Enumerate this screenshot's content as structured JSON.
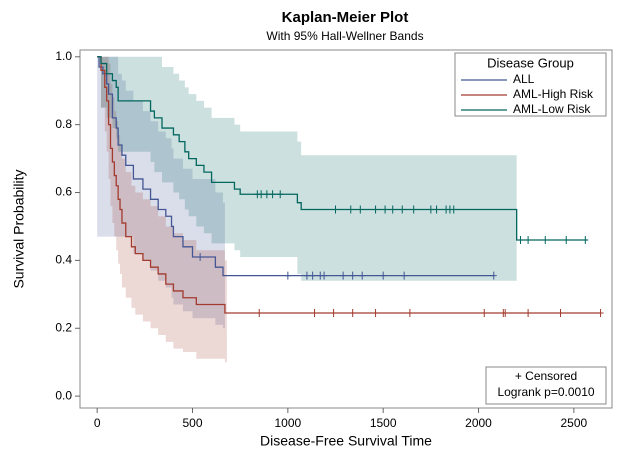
{
  "chart_data": {
    "type": "survival",
    "title": "Kaplan-Meier Plot",
    "subtitle": "With 95% Hall-Wellner Bands",
    "x_label": "Disease-Free Survival Time",
    "y_label": "Survival Probability",
    "xlim": [
      -90,
      2700
    ],
    "ylim": [
      -0.035,
      1.02
    ],
    "xticks": [
      0,
      500,
      1000,
      1500,
      2000,
      2500
    ],
    "yticks": [
      {
        "value": 0,
        "label": "0.0"
      },
      {
        "value": 0.2,
        "label": "0.2"
      },
      {
        "value": 0.4,
        "label": "0.4"
      },
      {
        "value": 0.6,
        "label": "0.6"
      },
      {
        "value": 0.8,
        "label": "0.8"
      },
      {
        "value": 1,
        "label": "1.0"
      }
    ],
    "legend_title": "Disease Group",
    "legend_position": "top-right",
    "censored_legend": "+ Censored",
    "logrank": "Logrank p=0.0010",
    "series": [
      {
        "name": "ALL",
        "color": "#445694",
        "x": [
          0,
          10,
          30,
          50,
          60,
          80,
          100,
          110,
          130,
          150,
          190,
          240,
          280,
          320,
          360,
          390,
          400,
          450,
          500,
          620,
          660,
          670,
          2080
        ],
        "y": [
          1,
          0.97,
          0.95,
          0.92,
          0.89,
          0.82,
          0.79,
          0.74,
          0.71,
          0.68,
          0.64,
          0.61,
          0.58,
          0.55,
          0.53,
          0.5,
          0.47,
          0.44,
          0.41,
          0.38,
          0.355,
          0.355,
          0.355
        ],
        "lower": [
          0.47,
          0.47,
          0.47,
          0.47,
          0.47,
          0.47,
          0.47,
          0.47,
          0.47,
          0.47,
          0.42,
          0.4,
          0.37,
          0.34,
          0.32,
          0.29,
          0.27,
          0.25,
          0.23,
          0.21,
          0.2,
          null,
          null
        ],
        "upper": [
          1,
          1,
          1,
          1,
          1,
          1,
          1,
          0.95,
          0.93,
          0.9,
          0.87,
          0.84,
          0.81,
          0.78,
          0.76,
          0.73,
          0.7,
          0.67,
          0.64,
          0.6,
          0.57,
          null,
          null
        ],
        "censored_x": [
          540,
          1000,
          1100,
          1130,
          1170,
          1190,
          1290,
          1340,
          1390,
          1500,
          1610,
          2080
        ],
        "censored_y": [
          0.41,
          0.355,
          0.355,
          0.355,
          0.355,
          0.355,
          0.355,
          0.355,
          0.355,
          0.355,
          0.355,
          0.355
        ]
      },
      {
        "name": "AML-High Risk",
        "color": "#a23a2e",
        "x": [
          0,
          20,
          40,
          50,
          60,
          70,
          80,
          90,
          100,
          110,
          120,
          130,
          150,
          180,
          200,
          240,
          280,
          320,
          360,
          400,
          450,
          520,
          670,
          680,
          2640
        ],
        "y": [
          1,
          0.96,
          0.91,
          0.87,
          0.8,
          0.73,
          0.69,
          0.65,
          0.62,
          0.58,
          0.55,
          0.51,
          0.47,
          0.44,
          0.42,
          0.4,
          0.38,
          0.36,
          0.33,
          0.31,
          0.29,
          0.27,
          0.245,
          0.245,
          0.245
        ],
        "lower": [
          1,
          0.85,
          0.78,
          0.72,
          0.64,
          0.56,
          0.51,
          0.47,
          0.43,
          0.39,
          0.36,
          0.32,
          0.29,
          0.26,
          0.24,
          0.22,
          0.2,
          0.18,
          0.16,
          0.14,
          0.13,
          0.11,
          0.1,
          null,
          null
        ],
        "upper": [
          1,
          1,
          1,
          1,
          0.98,
          0.92,
          0.88,
          0.84,
          0.81,
          0.77,
          0.74,
          0.7,
          0.66,
          0.62,
          0.6,
          0.58,
          0.56,
          0.53,
          0.5,
          0.48,
          0.46,
          0.43,
          0.4,
          null,
          null
        ],
        "censored_x": [
          850,
          1140,
          1240,
          1340,
          1460,
          1640,
          2030,
          2130,
          2140,
          2260,
          2430,
          2640
        ],
        "censored_y": [
          0.245,
          0.245,
          0.245,
          0.245,
          0.245,
          0.245,
          0.245,
          0.245,
          0.245,
          0.245,
          0.245,
          0.245
        ]
      },
      {
        "name": "AML-Low Risk",
        "color": "#01665e",
        "x": [
          0,
          20,
          50,
          80,
          100,
          110,
          280,
          300,
          340,
          400,
          430,
          460,
          480,
          520,
          560,
          600,
          720,
          750,
          1050,
          1070,
          2200,
          2570
        ],
        "y": [
          1,
          0.98,
          0.95,
          0.93,
          0.91,
          0.87,
          0.84,
          0.82,
          0.79,
          0.77,
          0.75,
          0.72,
          0.7,
          0.68,
          0.66,
          0.63,
          0.61,
          0.595,
          0.57,
          0.55,
          0.46,
          0.46
        ],
        "lower": [
          1,
          0.85,
          0.82,
          0.79,
          0.76,
          0.72,
          0.69,
          0.66,
          0.63,
          0.6,
          0.58,
          0.55,
          0.53,
          0.5,
          0.48,
          0.45,
          0.43,
          0.41,
          0.36,
          0.34,
          null,
          null
        ],
        "upper": [
          1,
          1,
          1,
          1,
          1,
          1,
          1,
          1,
          0.97,
          0.95,
          0.93,
          0.91,
          0.89,
          0.87,
          0.85,
          0.82,
          0.8,
          0.78,
          0.75,
          0.71,
          null,
          null
        ],
        "censored_x": [
          840,
          860,
          890,
          920,
          960,
          1250,
          1330,
          1380,
          1460,
          1510,
          1550,
          1600,
          1660,
          1750,
          1780,
          1830,
          1850,
          1870,
          2220,
          2260,
          2350,
          2460,
          2560
        ],
        "censored_y": [
          0.595,
          0.595,
          0.595,
          0.595,
          0.595,
          0.55,
          0.55,
          0.55,
          0.55,
          0.55,
          0.55,
          0.55,
          0.55,
          0.55,
          0.55,
          0.55,
          0.55,
          0.55,
          0.46,
          0.46,
          0.46,
          0.46,
          0.46
        ]
      }
    ]
  }
}
